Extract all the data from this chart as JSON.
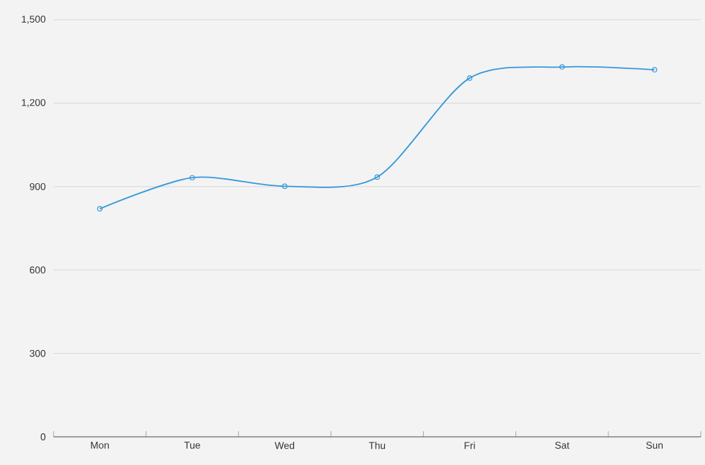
{
  "chart_data": {
    "type": "line",
    "categories": [
      "Mon",
      "Tue",
      "Wed",
      "Thu",
      "Fri",
      "Sat",
      "Sun"
    ],
    "values": [
      820,
      932,
      901,
      934,
      1290,
      1330,
      1320
    ],
    "color": "#3398db",
    "ylim": [
      0,
      1500
    ],
    "yticks": [
      0,
      300,
      600,
      900,
      {
        "value": 1200,
        "label": "1,200"
      },
      {
        "value": 1500,
        "label": "1,500"
      }
    ],
    "grid": "y",
    "marker": "circle"
  }
}
